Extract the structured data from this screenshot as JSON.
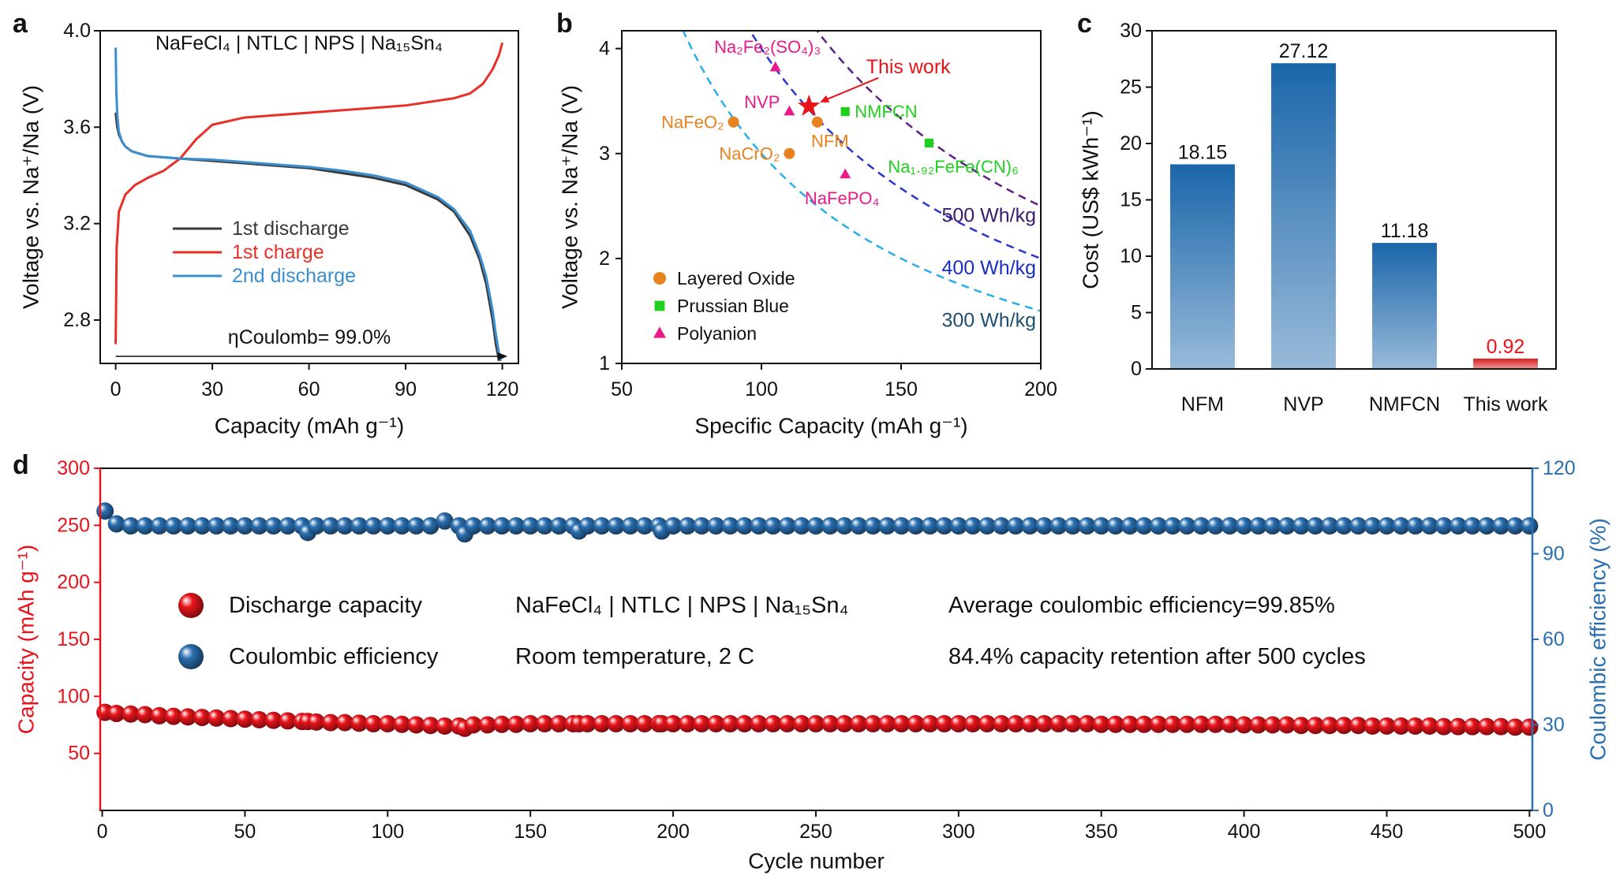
{
  "chart_data": [
    {
      "type": "line",
      "panel_label": "a",
      "title": "NaFeCl₄ | NTLC | NPS | Na₁₅Sn₄",
      "annotation": "ηCoulomb= 99.0%",
      "x_label": "Capacity (mAh g⁻¹)",
      "y_label": "Voltage vs. Na⁺/Na (V)",
      "xlim": [
        -4.8,
        125
      ],
      "ylim": [
        2.62,
        4.0
      ],
      "xticks": [
        0,
        30,
        60,
        90,
        120
      ],
      "yticks": [
        2.8,
        3.2,
        3.6,
        {
          "value": 4,
          "label": "4.0"
        }
      ],
      "series": [
        {
          "name": "1st discharge",
          "color": "#3a3a3a",
          "x": [
            0,
            0.5,
            1,
            2,
            3,
            5,
            10,
            20,
            30,
            40,
            50,
            60,
            70,
            80,
            90,
            100,
            105,
            110,
            113,
            115,
            117,
            118,
            119
          ],
          "values": [
            3.66,
            3.6,
            3.57,
            3.54,
            3.52,
            3.5,
            3.48,
            3.47,
            3.46,
            3.45,
            3.44,
            3.43,
            3.41,
            3.39,
            3.36,
            3.3,
            3.25,
            3.15,
            3.05,
            2.95,
            2.8,
            2.7,
            2.63
          ]
        },
        {
          "name": "1st charge",
          "color": "#e8302a",
          "x": [
            0,
            0.3,
            1,
            3,
            6,
            10,
            15,
            20,
            25,
            30,
            40,
            50,
            60,
            70,
            80,
            90,
            100,
            105,
            110,
            114,
            117,
            119,
            120
          ],
          "values": [
            2.7,
            3.1,
            3.25,
            3.32,
            3.36,
            3.39,
            3.42,
            3.47,
            3.55,
            3.61,
            3.64,
            3.65,
            3.66,
            3.67,
            3.68,
            3.69,
            3.71,
            3.72,
            3.74,
            3.78,
            3.84,
            3.9,
            3.95
          ]
        },
        {
          "name": "2nd discharge",
          "color": "#3b8fd0",
          "x": [
            0,
            0.2,
            0.5,
            1,
            2,
            3,
            5,
            10,
            20,
            30,
            40,
            50,
            60,
            70,
            80,
            90,
            100,
            105,
            110,
            113,
            115,
            117,
            118,
            119,
            119.5
          ],
          "values": [
            3.93,
            3.75,
            3.65,
            3.58,
            3.54,
            3.52,
            3.5,
            3.48,
            3.47,
            3.465,
            3.455,
            3.445,
            3.435,
            3.42,
            3.4,
            3.37,
            3.31,
            3.26,
            3.17,
            3.07,
            2.98,
            2.84,
            2.74,
            2.66,
            2.63
          ]
        }
      ]
    },
    {
      "type": "scatter",
      "panel_label": "b",
      "x_label": "Specific Capacity (mAh g⁻¹)",
      "y_label": "Voltage vs. Na⁺/Na (V)",
      "xlim": [
        50,
        200
      ],
      "ylim": [
        1,
        4.17
      ],
      "xticks": [
        50,
        100,
        150,
        200
      ],
      "yticks": [
        1,
        2,
        3,
        4
      ],
      "series": [
        {
          "name": "Layered Oxide",
          "color": "#e8821e",
          "marker": "circle",
          "x": [
            90,
            110,
            120
          ],
          "values": [
            3.3,
            3.0,
            3.3
          ],
          "labels": [
            "NaFeO₂",
            "NaCrO₂",
            "NFM"
          ]
        },
        {
          "name": "Prussian Blue",
          "color": "#1fd11f",
          "marker": "square",
          "x": [
            130,
            160
          ],
          "values": [
            3.4,
            3.1
          ],
          "labels": [
            "NMFCN",
            "Na₁.₉₂FeFe(CN)₆"
          ]
        },
        {
          "name": "Polyanion",
          "color": "#ea1a8a",
          "marker": "triangle",
          "x": [
            105,
            110,
            130
          ],
          "values": [
            3.82,
            3.4,
            2.8
          ],
          "labels": [
            "Na₂Fe₂(SO₄)₃",
            "NVP",
            "NaFePO₄"
          ]
        }
      ],
      "highlight": {
        "label": "This work",
        "x": 117,
        "value": 3.45,
        "color": "#e8141b"
      },
      "energy_lines": [
        {
          "value": 300,
          "label": "300 Wh/kg",
          "color": "#2aaeea",
          "label_color": "#1f4f6f"
        },
        {
          "value": 400,
          "label": "400 Wh/kg",
          "color": "#2a34d0",
          "label_color": "#1a2fbf"
        },
        {
          "value": 500,
          "label": "500 Wh/kg",
          "color": "#5b1f85",
          "label_color": "#3a1a6e"
        }
      ]
    },
    {
      "type": "bar",
      "panel_label": "c",
      "y_label": "Cost (US$ kWh⁻¹)",
      "categories": [
        "NFM",
        "NVP",
        "NMFCN",
        "This work"
      ],
      "values": [
        18.15,
        27.12,
        11.18,
        0.92
      ],
      "colors": [
        "#1a66aa",
        "#1a66aa",
        "#1a66aa",
        "#d81e1e"
      ],
      "label_colors": [
        "#111111",
        "#111111",
        "#111111",
        "#e8141b"
      ],
      "ylim": [
        0,
        30
      ],
      "yticks": [
        0,
        5,
        10,
        15,
        20,
        25,
        30
      ]
    },
    {
      "type": "scatter",
      "panel_label": "d",
      "x_label": "Cycle number",
      "y_label": "Capacity (mAh g⁻¹)",
      "y2_label": "Coulombic efficiency (%)",
      "xlim": [
        -0.7,
        501
      ],
      "ylim": [
        0,
        300
      ],
      "y2lim": [
        0,
        120
      ],
      "xticks": [
        0,
        50,
        100,
        150,
        200,
        250,
        300,
        350,
        400,
        450,
        500
      ],
      "yticks": [
        50,
        100,
        150,
        200,
        250,
        300
      ],
      "y2ticks": [
        0,
        30,
        60,
        90,
        120
      ],
      "annotations": [
        "NaFeCl₄ | NTLC | NPS | Na₁₅Sn₄",
        "Room temperature, 2 C",
        "Average coulombic efficiency=99.85%",
        "84.4% capacity retention after 500 cycles"
      ],
      "x": [
        1,
        5,
        10,
        15,
        20,
        25,
        30,
        35,
        40,
        45,
        50,
        55,
        60,
        65,
        70,
        72,
        75,
        80,
        85,
        90,
        95,
        100,
        105,
        110,
        115,
        120,
        125,
        127,
        130,
        135,
        140,
        145,
        150,
        155,
        160,
        165,
        167,
        170,
        175,
        180,
        185,
        190,
        195,
        196,
        200,
        205,
        210,
        215,
        220,
        225,
        230,
        235,
        240,
        245,
        250,
        255,
        260,
        265,
        270,
        275,
        280,
        285,
        290,
        295,
        300,
        305,
        310,
        315,
        320,
        325,
        330,
        335,
        340,
        345,
        350,
        355,
        360,
        365,
        370,
        375,
        380,
        385,
        390,
        395,
        400,
        405,
        410,
        415,
        420,
        425,
        430,
        435,
        440,
        445,
        450,
        455,
        460,
        465,
        470,
        475,
        480,
        485,
        490,
        495,
        500
      ],
      "series": [
        {
          "name": "Discharge capacity",
          "color": "#e8141b",
          "marker": "sphere",
          "values": [
            86,
            85,
            84.5,
            84,
            83,
            82.5,
            82,
            81.5,
            81,
            80.5,
            80,
            79.5,
            79,
            78.5,
            78,
            78,
            77.5,
            77,
            77,
            76.5,
            76,
            76,
            75.5,
            75,
            74.5,
            74,
            74,
            72,
            75,
            75,
            75.5,
            75.5,
            76,
            76,
            76,
            76,
            76,
            76,
            76,
            76,
            76,
            76,
            76,
            76,
            76,
            76,
            76,
            76,
            76,
            76,
            76,
            76,
            76,
            76,
            76,
            76,
            76,
            76,
            76,
            76,
            76,
            76,
            76,
            76,
            76,
            76,
            76,
            76,
            76,
            76,
            76,
            76,
            76,
            76,
            75.5,
            75.5,
            75.5,
            75.5,
            75.5,
            75.5,
            75.5,
            75.5,
            75.5,
            75.5,
            75,
            75,
            75,
            75,
            74.5,
            74.5,
            74.5,
            74.5,
            74.5,
            74,
            74,
            74,
            74,
            74,
            73.5,
            73.5,
            73.5,
            73.5,
            73.5,
            73,
            73
          ]
        },
        {
          "name": "Coulombic efficiency",
          "color": "#2a6fb0",
          "marker": "sphere",
          "axis": "y2",
          "values": [
            105,
            100.5,
            99.8,
            99.8,
            99.8,
            99.8,
            99.8,
            99.8,
            99.8,
            99.8,
            99.8,
            99.8,
            99.8,
            99.8,
            99.8,
            97.5,
            99.8,
            99.8,
            99.8,
            99.8,
            99.8,
            99.8,
            99.8,
            99.8,
            99.8,
            101.5,
            99.8,
            97,
            99.8,
            99.8,
            99.8,
            99.8,
            99.8,
            99.8,
            99.8,
            99.8,
            98,
            99.8,
            99.8,
            99.8,
            99.8,
            99.8,
            99.8,
            98,
            99.8,
            99.8,
            99.8,
            99.8,
            99.8,
            99.8,
            99.8,
            99.8,
            99.8,
            99.8,
            99.8,
            99.8,
            99.8,
            99.8,
            99.8,
            99.8,
            99.8,
            99.8,
            99.8,
            99.8,
            99.8,
            99.8,
            99.8,
            99.8,
            99.8,
            99.8,
            99.8,
            99.8,
            99.8,
            99.8,
            99.8,
            99.8,
            99.8,
            99.8,
            99.8,
            99.8,
            99.8,
            99.8,
            99.8,
            99.8,
            99.8,
            99.8,
            99.8,
            99.8,
            99.8,
            99.8,
            99.8,
            99.8,
            99.8,
            99.8,
            99.8,
            99.8,
            99.8,
            99.8,
            99.8,
            99.8,
            99.8,
            99.8,
            99.8,
            99.8,
            99.8
          ]
        }
      ]
    }
  ]
}
